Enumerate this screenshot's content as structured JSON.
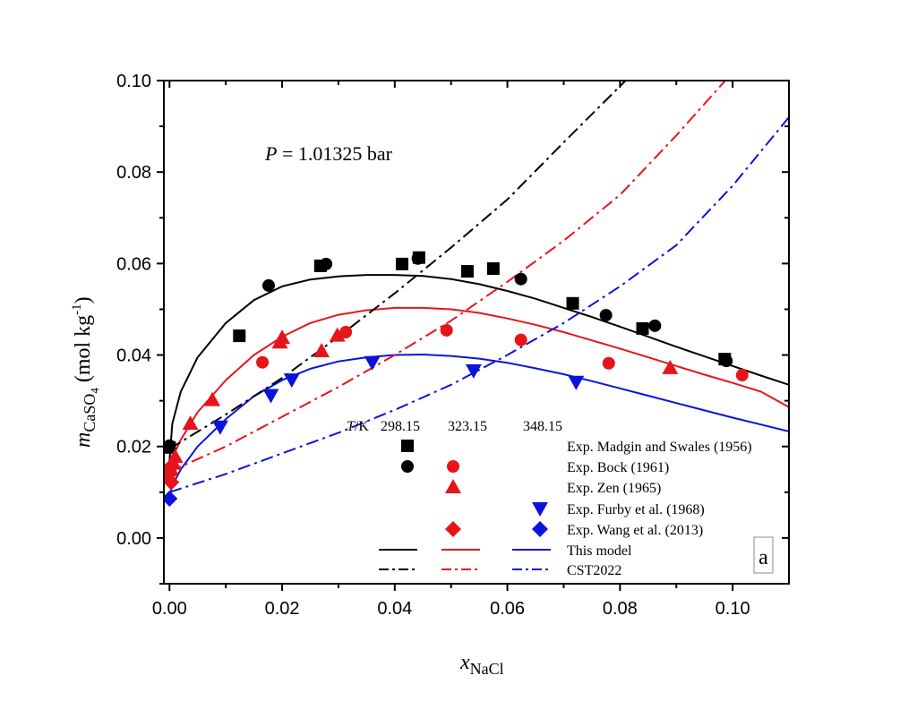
{
  "chart_data": {
    "type": "scatter",
    "title": "",
    "annotation": {
      "prefix": "P",
      "text": " = 1.01325 bar"
    },
    "panel_label": "a",
    "xlabel": {
      "main": "x",
      "sub": "NaCl"
    },
    "ylabel": {
      "main": "m",
      "sub": "CaSO",
      "subsub": "4",
      "units": " (mol kg",
      "sup": "-1",
      "close": ")"
    },
    "xlim": [
      -0.001,
      0.11
    ],
    "ylim": [
      -0.01,
      0.1
    ],
    "xticks": [
      0.0,
      0.02,
      0.04,
      0.06,
      0.08,
      0.1
    ],
    "xtick_labels": [
      "0.00",
      "0.02",
      "0.04",
      "0.06",
      "0.08",
      "0.10"
    ],
    "xminor": [
      0.01,
      0.03,
      0.05,
      0.07,
      0.09
    ],
    "yticks": [
      0.0,
      0.02,
      0.04,
      0.06,
      0.08,
      0.1
    ],
    "ytick_labels": [
      "0.00",
      "0.02",
      "0.04",
      "0.06",
      "0.08",
      "0.10"
    ],
    "yminor": [
      -0.01,
      0.01,
      0.03,
      0.05,
      0.07,
      0.09
    ],
    "grid": false,
    "legend": {
      "placement": "bottom-right",
      "header": {
        "prefix": "T",
        "unit": "/K",
        "temps": [
          "298.15",
          "323.15",
          "348.15"
        ]
      },
      "entries": [
        {
          "label": "Exp. Madgin and Swales (1956)",
          "marker": "square",
          "temps": [
            true,
            false,
            false
          ]
        },
        {
          "label": "Exp. Bock (1961)",
          "marker": "circle",
          "temps": [
            true,
            true,
            false
          ]
        },
        {
          "label": "Exp. Zen (1965)",
          "marker": "triangle-up",
          "temps": [
            false,
            true,
            false
          ]
        },
        {
          "label": "Exp. Furby et al. (1968)",
          "marker": "triangle-down",
          "temps": [
            false,
            false,
            true
          ]
        },
        {
          "label": "Exp. Wang et al. (2013)",
          "marker": "diamond",
          "temps": [
            false,
            true,
            true
          ]
        },
        {
          "label": "This model",
          "line": "solid",
          "temps": [
            true,
            true,
            true
          ]
        },
        {
          "label": "CST2022",
          "line": "dashdot",
          "temps": [
            true,
            true,
            true
          ]
        }
      ]
    },
    "colors": {
      "298.15": "#000000",
      "323.15": "#e8141b",
      "348.15": "#0a14d8"
    },
    "series": [
      {
        "name": "Exp. Madgin and Swales (1956) 298.15 K",
        "marker": "square",
        "temp": "298.15",
        "x": [
          0.0,
          0.0124,
          0.0268,
          0.0413,
          0.0443,
          0.0529,
          0.0575,
          0.0716,
          0.084,
          0.0986
        ],
        "y": [
          0.0198,
          0.0442,
          0.0595,
          0.0599,
          0.0613,
          0.0583,
          0.0589,
          0.0513,
          0.0458,
          0.0391
        ]
      },
      {
        "name": "Exp. Bock (1961) 298.15 K",
        "marker": "circle",
        "temp": "298.15",
        "x": [
          0.0,
          0.0176,
          0.0278,
          0.0441,
          0.0624,
          0.0775,
          0.0862,
          0.0989
        ],
        "y": [
          0.0202,
          0.0552,
          0.0599,
          0.0611,
          0.0566,
          0.0487,
          0.0464,
          0.0387
        ]
      },
      {
        "name": "Exp. Bock (1961) 323.15 K",
        "marker": "circle",
        "temp": "323.15",
        "x": [
          0.0,
          0.0165,
          0.0313,
          0.0492,
          0.0624,
          0.078,
          0.1017
        ],
        "y": [
          0.0152,
          0.0384,
          0.045,
          0.0454,
          0.0433,
          0.0382,
          0.0356
        ]
      },
      {
        "name": "Exp. Zen (1965) 323.15 K",
        "marker": "triangle-up",
        "temp": "323.15",
        "x": [
          0.0,
          0.0003,
          0.0007,
          0.001,
          0.0037,
          0.0076,
          0.0196,
          0.02,
          0.027,
          0.0298,
          0.0889
        ],
        "y": [
          0.0135,
          0.015,
          0.0163,
          0.0178,
          0.025,
          0.0302,
          0.0428,
          0.0438,
          0.0409,
          0.0443,
          0.0372
        ]
      },
      {
        "name": "Exp. Furby et al. (1968) 348.15 K",
        "marker": "triangle-down",
        "temp": "348.15",
        "x": [
          0.009,
          0.018,
          0.0217,
          0.036,
          0.054,
          0.0722
        ],
        "y": [
          0.0243,
          0.0312,
          0.0346,
          0.0384,
          0.0366,
          0.0341
        ]
      },
      {
        "name": "Exp. Wang et al. (2013) 323.15 K",
        "marker": "diamond",
        "temp": "323.15",
        "x": [
          0.0,
          0.0003
        ],
        "y": [
          0.014,
          0.0122
        ]
      },
      {
        "name": "Exp. Wang et al. (2013) 348.15 K",
        "marker": "diamond",
        "temp": "348.15",
        "x": [
          0.0
        ],
        "y": [
          0.0086
        ]
      },
      {
        "name": "This model 298.15 K",
        "line": "solid",
        "temp": "298.15",
        "x": [
          0.0,
          0.0005,
          0.002,
          0.005,
          0.01,
          0.015,
          0.02,
          0.025,
          0.03,
          0.035,
          0.04,
          0.045,
          0.05,
          0.055,
          0.06,
          0.065,
          0.07,
          0.075,
          0.08,
          0.085,
          0.09,
          0.095,
          0.1,
          0.105,
          0.11
        ],
        "y": [
          0.017,
          0.025,
          0.032,
          0.0395,
          0.047,
          0.052,
          0.055,
          0.0565,
          0.0572,
          0.0575,
          0.0575,
          0.0573,
          0.0566,
          0.0555,
          0.054,
          0.0523,
          0.0503,
          0.0483,
          0.0462,
          0.044,
          0.0418,
          0.0397,
          0.0376,
          0.0355,
          0.0335
        ]
      },
      {
        "name": "This model 323.15 K",
        "line": "solid",
        "temp": "323.15",
        "x": [
          0.0,
          0.0005,
          0.002,
          0.005,
          0.01,
          0.015,
          0.02,
          0.025,
          0.03,
          0.035,
          0.04,
          0.045,
          0.05,
          0.055,
          0.06,
          0.065,
          0.07,
          0.075,
          0.08,
          0.085,
          0.09,
          0.095,
          0.1,
          0.105,
          0.11
        ],
        "y": [
          0.014,
          0.0175,
          0.0215,
          0.0275,
          0.0345,
          0.04,
          0.044,
          0.047,
          0.0488,
          0.0498,
          0.0503,
          0.0503,
          0.05,
          0.0492,
          0.048,
          0.0466,
          0.045,
          0.0432,
          0.0414,
          0.0395,
          0.0376,
          0.0357,
          0.0339,
          0.032,
          0.0286
        ]
      },
      {
        "name": "This model 348.15 K",
        "line": "solid",
        "temp": "348.15",
        "x": [
          0.0,
          0.0005,
          0.002,
          0.005,
          0.01,
          0.015,
          0.02,
          0.025,
          0.03,
          0.035,
          0.04,
          0.045,
          0.05,
          0.055,
          0.06,
          0.065,
          0.07,
          0.075,
          0.08,
          0.085,
          0.09,
          0.095,
          0.1,
          0.105,
          0.11
        ],
        "y": [
          0.009,
          0.0115,
          0.015,
          0.02,
          0.026,
          0.031,
          0.0345,
          0.037,
          0.0386,
          0.0395,
          0.04,
          0.0401,
          0.0398,
          0.0392,
          0.0383,
          0.0371,
          0.0358,
          0.0343,
          0.0327,
          0.0311,
          0.0295,
          0.0279,
          0.0263,
          0.0248,
          0.0233
        ]
      },
      {
        "name": "CST2022 298.15 K",
        "line": "dashdot",
        "temp": "298.15",
        "x": [
          0.0,
          0.01,
          0.02,
          0.03,
          0.04,
          0.05,
          0.06,
          0.07,
          0.081
        ],
        "y": [
          0.0195,
          0.027,
          0.035,
          0.044,
          0.0535,
          0.0635,
          0.074,
          0.0865,
          0.1
        ]
      },
      {
        "name": "CST2022 323.15 K",
        "line": "dashdot",
        "temp": "323.15",
        "x": [
          0.0,
          0.01,
          0.02,
          0.03,
          0.04,
          0.05,
          0.06,
          0.07,
          0.08,
          0.09,
          0.0987
        ],
        "y": [
          0.0145,
          0.02,
          0.0265,
          0.033,
          0.04,
          0.0475,
          0.056,
          0.065,
          0.075,
          0.088,
          0.1
        ]
      },
      {
        "name": "CST2022 348.15 K",
        "line": "dashdot",
        "temp": "348.15",
        "x": [
          0.0,
          0.01,
          0.02,
          0.03,
          0.04,
          0.05,
          0.06,
          0.07,
          0.08,
          0.09,
          0.1,
          0.11
        ],
        "y": [
          0.01,
          0.014,
          0.0185,
          0.023,
          0.028,
          0.0335,
          0.04,
          0.047,
          0.055,
          0.064,
          0.077,
          0.092
        ]
      }
    ]
  }
}
